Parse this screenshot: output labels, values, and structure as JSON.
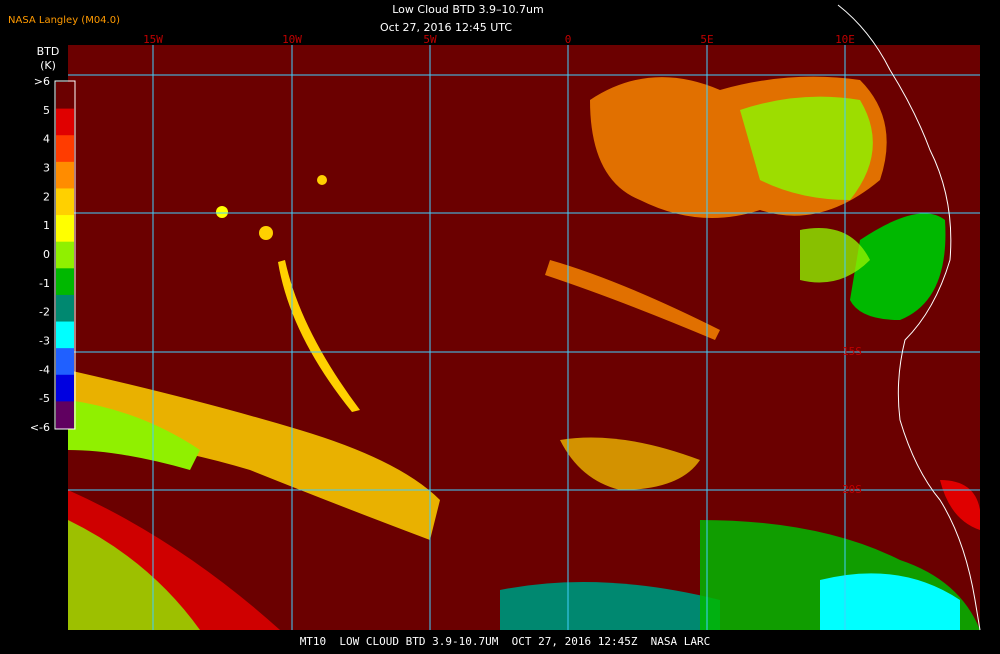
{
  "header": {
    "source": "NASA Langley (M04.0)",
    "title": "Low Cloud BTD 3.9–10.7um",
    "subtitle": "Oct 27, 2016 12:45 UTC"
  },
  "colorbar": {
    "title": "BTD",
    "unit": "(K)",
    "labels": [
      ">6",
      "5",
      "4",
      "3",
      "2",
      "1",
      "0",
      "-1",
      "-2",
      "-3",
      "-4",
      "-5",
      "<-6"
    ],
    "colors": [
      "#6b0000",
      "#e00000",
      "#ff3c00",
      "#ff8c00",
      "#ffd000",
      "#ffff00",
      "#90f000",
      "#00b800",
      "#008870",
      "#00ffff",
      "#2060ff",
      "#0000e0",
      "#600060"
    ]
  },
  "map": {
    "lon_labels": [
      "15W",
      "10W",
      "5W",
      "0",
      "5E",
      "10E"
    ],
    "lat_labels": [
      "15S",
      "20S"
    ]
  },
  "footer": "MT10  LOW CLOUD BTD 3.9-10.7UM  OCT 27, 2016 12:45Z  NASA LARC"
}
